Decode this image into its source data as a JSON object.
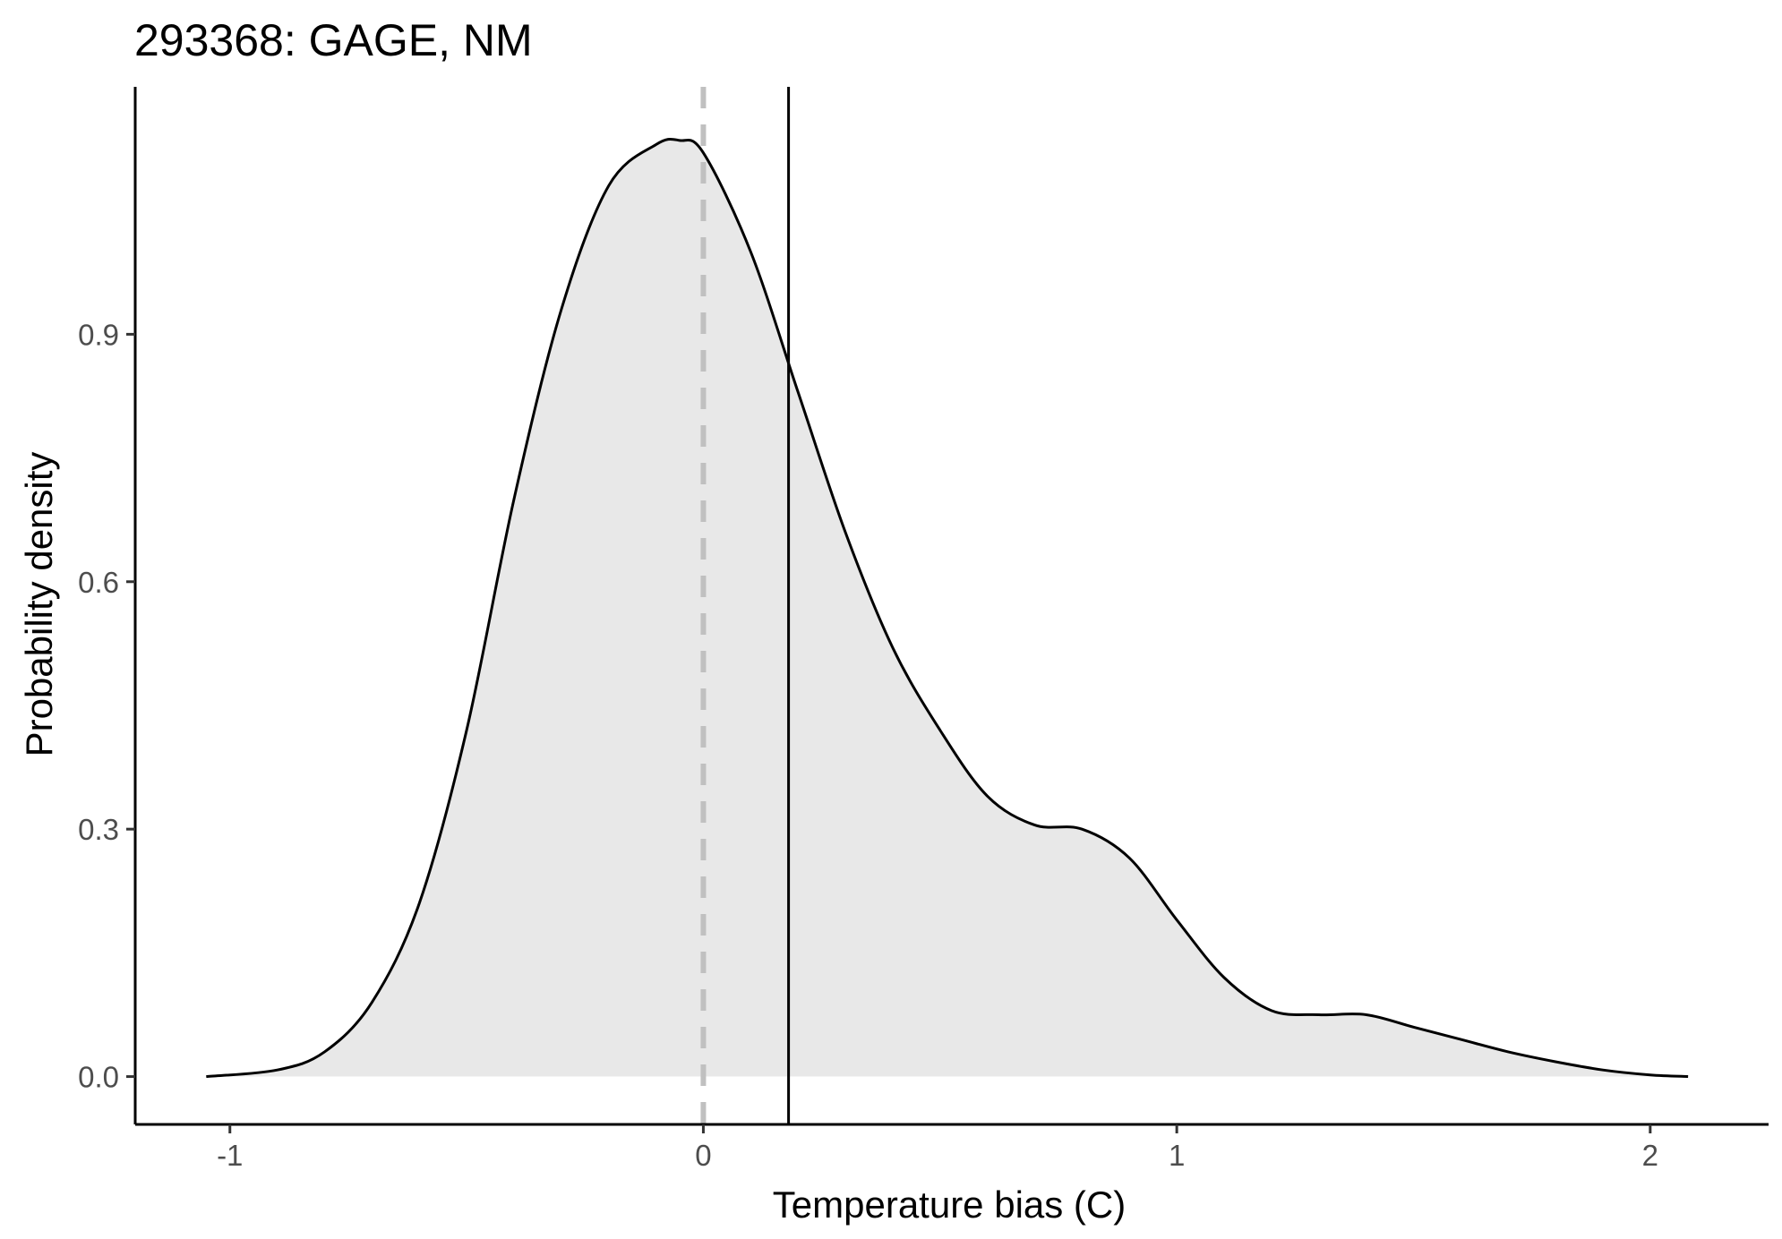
{
  "chart_data": {
    "type": "area",
    "title": "293368: GAGE, NM",
    "xlabel": "Temperature bias (C)",
    "ylabel": "Probability density",
    "xlim": [
      -1.2,
      2.25
    ],
    "ylim": [
      -0.058,
      1.2
    ],
    "x_ticks": [
      -1,
      0,
      1,
      2
    ],
    "x_tick_labels": [
      "-1",
      "0",
      "1",
      "2"
    ],
    "y_ticks": [
      0.0,
      0.3,
      0.6,
      0.9
    ],
    "y_tick_labels": [
      "0.0",
      "0.3",
      "0.6",
      "0.9"
    ],
    "grid": false,
    "legend": "none",
    "density_curve": {
      "x": [
        -1.05,
        -0.9,
        -0.8,
        -0.7,
        -0.6,
        -0.5,
        -0.4,
        -0.3,
        -0.2,
        -0.1,
        -0.05,
        0.0,
        0.1,
        0.2,
        0.3,
        0.4,
        0.5,
        0.6,
        0.7,
        0.8,
        0.9,
        1.0,
        1.1,
        1.2,
        1.3,
        1.4,
        1.5,
        1.6,
        1.7,
        1.8,
        1.9,
        2.0,
        2.08
      ],
      "y": [
        0.0,
        0.008,
        0.03,
        0.09,
        0.21,
        0.42,
        0.7,
        0.93,
        1.08,
        1.13,
        1.135,
        1.12,
        1.0,
        0.83,
        0.66,
        0.52,
        0.42,
        0.34,
        0.305,
        0.3,
        0.265,
        0.19,
        0.12,
        0.08,
        0.075,
        0.075,
        0.06,
        0.045,
        0.03,
        0.018,
        0.008,
        0.002,
        0.0
      ]
    },
    "reference_lines": [
      {
        "x": 0.0,
        "style": "dashed",
        "color": "#c0c0c0"
      },
      {
        "x": 0.18,
        "style": "solid",
        "color": "#000000"
      }
    ],
    "colors": {
      "fill": "#e8e8e8",
      "curve": "#000000",
      "axis": "#000000",
      "tick_label": "#4d4d4d"
    }
  }
}
